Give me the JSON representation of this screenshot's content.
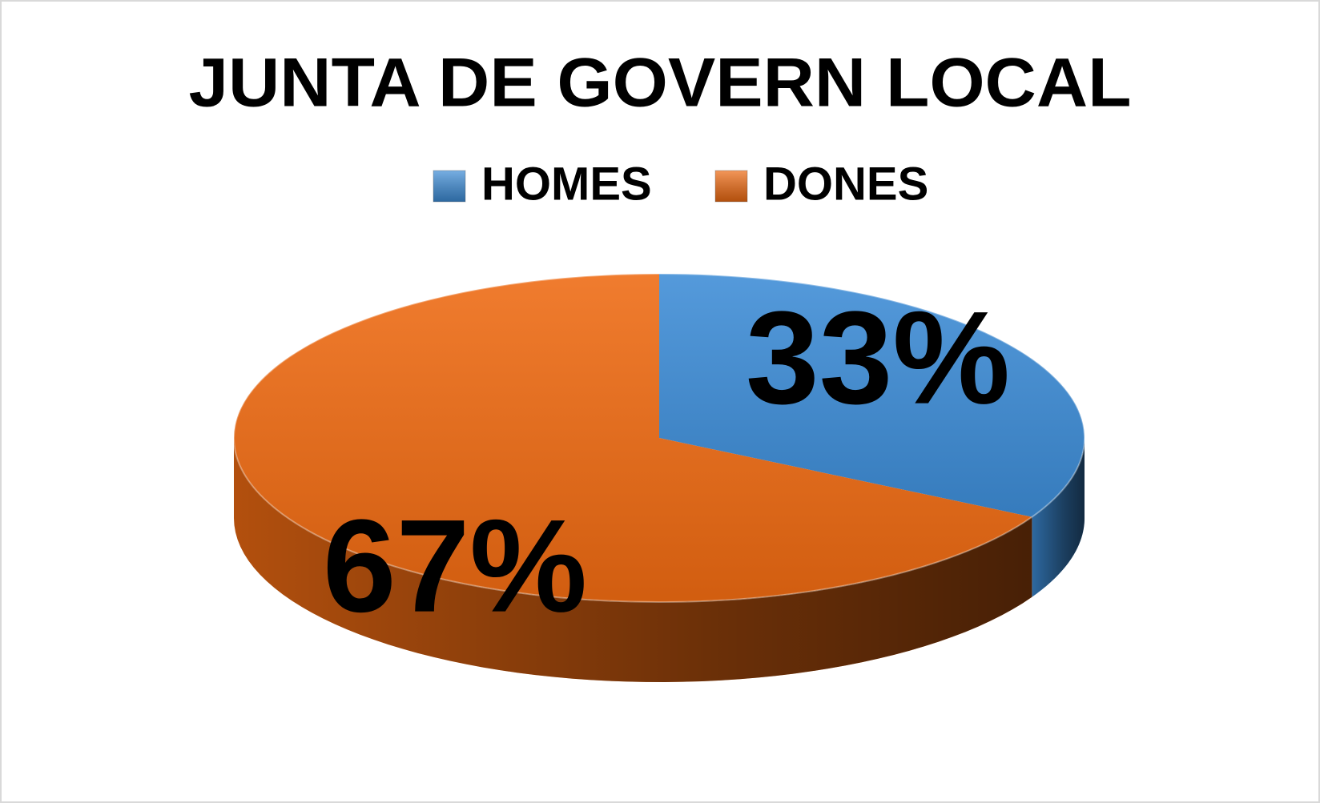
{
  "chart_data": {
    "type": "pie3d",
    "title": "JUNTA DE GOVERN LOCAL",
    "categories": [
      "HOMES",
      "DONES"
    ],
    "values": [
      33,
      67
    ],
    "value_labels": [
      "33%",
      "67%"
    ],
    "colors": [
      "#3d8cd6",
      "#ee6a12"
    ],
    "legend": "top"
  }
}
